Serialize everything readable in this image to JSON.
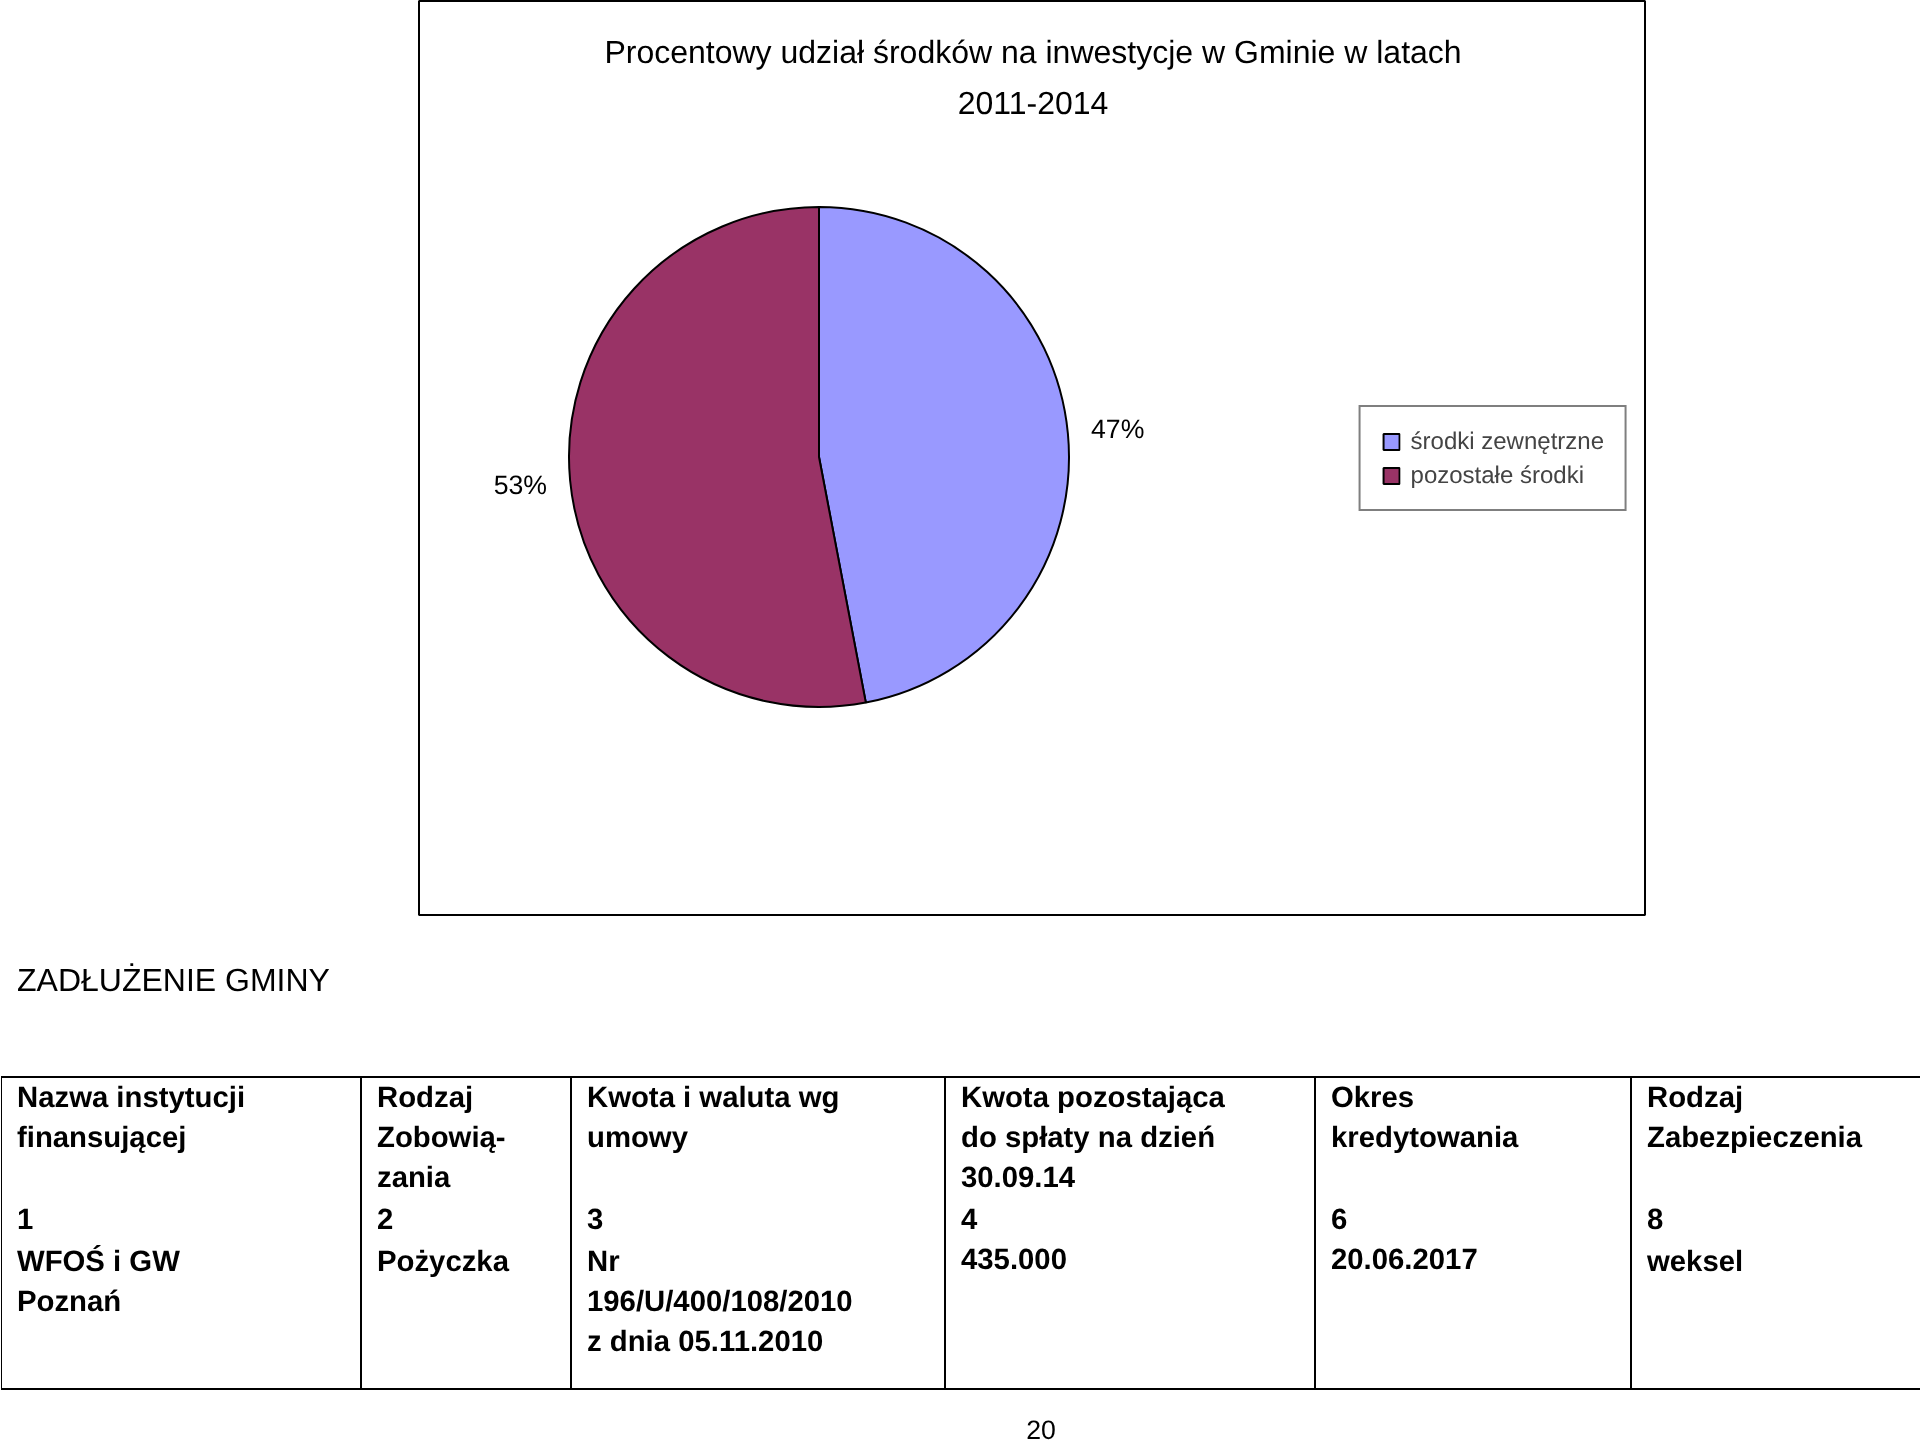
{
  "chart_data": [
    {
      "type": "pie",
      "title": "Procentowy udział środków na inwestycje w Gminie w latach 2011-2014",
      "categories": [
        "środki zewnętrzne",
        "pozostałe środki"
      ],
      "values": [
        47,
        53
      ],
      "colors": [
        "#9999ff",
        "#993366"
      ],
      "value_labels": [
        "47%",
        "53%"
      ],
      "legend": "right"
    },
    {
      "type": "other",
      "title": "ZADŁUŻENIE GMINY",
      "annotations": [
        "Nazwa instytucji\nfinansującej",
        "Rodzaj\nZobowią-\nzania",
        "Kwota i waluta  wg\numowy",
        "Kwota pozostająca\ndo spłaty na dzień\n30.09.14",
        "Okres\nkredytowania",
        "Rodzaj\nZabezpieczenia",
        "1",
        "2",
        "3",
        "4",
        "6",
        "8",
        "WFOŚ  i GW\nPoznań",
        "Pożyczka",
        "Nr\n196/U/400/108/2010\nz dnia 05.11.2010",
        "435.000",
        "20.06.2017",
        "weksel",
        "20"
      ]
    }
  ]
}
